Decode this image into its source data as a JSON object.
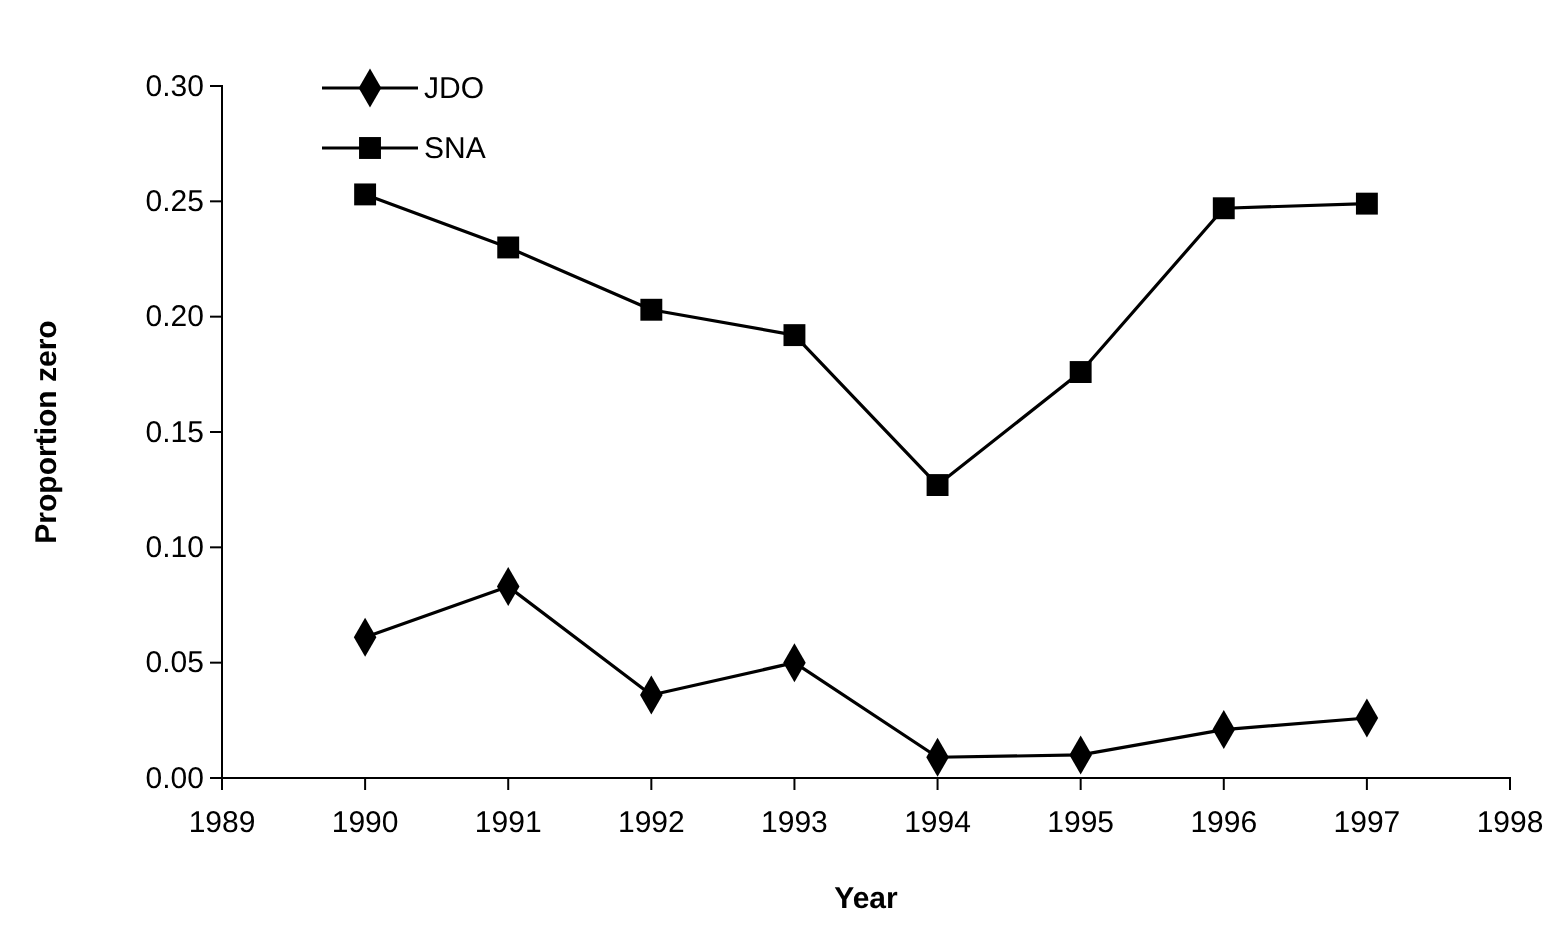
{
  "chart_data": {
    "type": "line",
    "xlabel": "Year",
    "ylabel": "Proportion zero",
    "x": [
      1990,
      1991,
      1992,
      1993,
      1994,
      1995,
      1996,
      1997
    ],
    "series": [
      {
        "name": "JDO",
        "color": "#000000",
        "marker": "diamond",
        "values": [
          0.061,
          0.083,
          0.036,
          0.05,
          0.009,
          0.01,
          0.021,
          0.026
        ]
      },
      {
        "name": "SNA",
        "color": "#000000",
        "marker": "square",
        "values": [
          0.253,
          0.23,
          0.203,
          0.192,
          0.127,
          0.176,
          0.247,
          0.249
        ]
      }
    ],
    "xlim": [
      1989,
      1998
    ],
    "xticks": [
      1989,
      1990,
      1991,
      1992,
      1993,
      1994,
      1995,
      1996,
      1997,
      1998
    ],
    "ylim": [
      0,
      0.3
    ],
    "yticks": [
      {
        "value": 0,
        "label": "0.00"
      },
      {
        "value": 0.05,
        "label": "0.05"
      },
      {
        "value": 0.1,
        "label": "0.10"
      },
      {
        "value": 0.15,
        "label": "0.15"
      },
      {
        "value": 0.2,
        "label": "0.20"
      },
      {
        "value": 0.25,
        "label": "0.25"
      },
      {
        "value": 0.3,
        "label": "0.30"
      }
    ],
    "grid": false,
    "legend": "top left",
    "line_style": "solid"
  }
}
